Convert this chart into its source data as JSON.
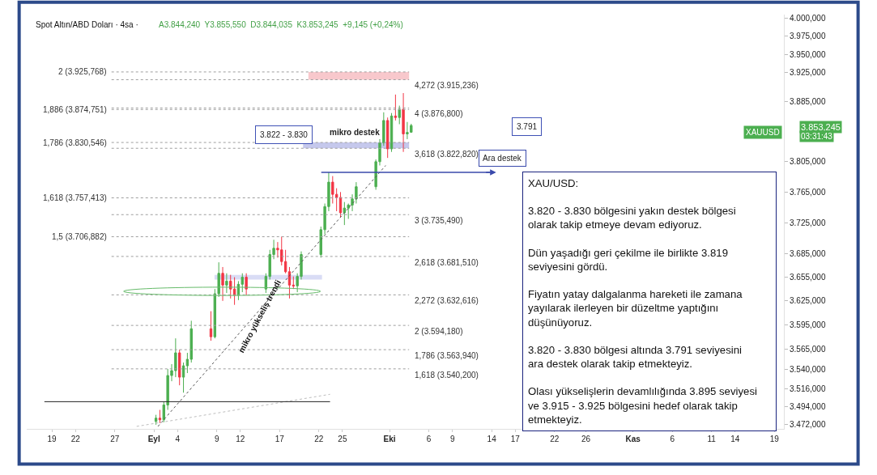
{
  "chart_data": {
    "type": "candlestick",
    "title": "Spot Altın/ABD Doları · 4sa ·",
    "subtitle": "A3.844,240  Y3.855,550  D3.844,035  K3.853,245  +9,145 (+0,24%)",
    "x": [
      "--09-01T06:00",
      "--09-01T18:00",
      "--09-02T06:00",
      "--09-02T18:00",
      "--09-03T06:00",
      "--09-03T18:00",
      "--09-04T06:00",
      "--09-04T18:00",
      "--09-05T06:00",
      "--09-05T18:00",
      "--09-08T06:00",
      "--09-08T18:00",
      "--09-09T06:00",
      "--09-09T18:00",
      "--09-10T06:00",
      "--09-10T18:00",
      "--09-11T06:00",
      "--09-11T18:00",
      "--09-12T06:00",
      "--09-12T18:00",
      "--09-15T06:00",
      "--09-15T18:00",
      "--09-16T06:00",
      "--09-16T18:00",
      "--09-17T06:00",
      "--09-17T18:00",
      "--09-18T06:00",
      "--09-18T18:00",
      "--09-19T06:00",
      "--09-19T18:00",
      "--09-22T06:00",
      "--09-22T18:00",
      "--09-23T06:00",
      "--09-23T18:00",
      "--09-24T06:00",
      "--09-24T18:00",
      "--09-25T06:00",
      "--09-25T18:00",
      "--09-26T06:00",
      "--09-26T18:00",
      "--09-29T06:00",
      "--09-29T18:00",
      "--09-30T06:00",
      "--09-30T18:00",
      "--10-01T06:00",
      "--10-01T18:00",
      "--10-02T06:00",
      "--10-02T18:00",
      "--10-03T06:00",
      "--10-03T18:00"
    ],
    "ohlc": [
      [
        3476,
        3484,
        3472,
        3480
      ],
      [
        3480,
        3490,
        3474,
        3478
      ],
      [
        3478,
        3500,
        3475,
        3496
      ],
      [
        3496,
        3540,
        3490,
        3532
      ],
      [
        3532,
        3546,
        3525,
        3538
      ],
      [
        3538,
        3578,
        3530,
        3560
      ],
      [
        3560,
        3564,
        3520,
        3530
      ],
      [
        3530,
        3548,
        3511,
        3544
      ],
      [
        3544,
        3560,
        3535,
        3552
      ],
      [
        3552,
        3600,
        3548,
        3590
      ],
      [
        3590,
        3612,
        3575,
        3580
      ],
      [
        3580,
        3640,
        3578,
        3634
      ],
      [
        3634,
        3674,
        3630,
        3660
      ],
      [
        3660,
        3668,
        3625,
        3645
      ],
      [
        3645,
        3660,
        3635,
        3650
      ],
      [
        3650,
        3658,
        3628,
        3640
      ],
      [
        3640,
        3655,
        3620,
        3632
      ],
      [
        3632,
        3650,
        3626,
        3646
      ],
      [
        3646,
        3660,
        3636,
        3655
      ],
      [
        3655,
        3660,
        3632,
        3640
      ],
      [
        3640,
        3660,
        3635,
        3656
      ],
      [
        3656,
        3690,
        3652,
        3684
      ],
      [
        3684,
        3703,
        3678,
        3692
      ],
      [
        3692,
        3700,
        3680,
        3690
      ],
      [
        3690,
        3707,
        3670,
        3675
      ],
      [
        3675,
        3690,
        3660,
        3662
      ],
      [
        3662,
        3668,
        3628,
        3645
      ],
      [
        3645,
        3656,
        3640,
        3644
      ],
      [
        3644,
        3660,
        3636,
        3656
      ],
      [
        3656,
        3688,
        3652,
        3684
      ],
      [
        3684,
        3720,
        3680,
        3716
      ],
      [
        3716,
        3750,
        3710,
        3746
      ],
      [
        3746,
        3791,
        3740,
        3778
      ],
      [
        3778,
        3786,
        3750,
        3762
      ],
      [
        3762,
        3770,
        3740,
        3758
      ],
      [
        3758,
        3765,
        3732,
        3738
      ],
      [
        3738,
        3752,
        3722,
        3744
      ],
      [
        3744,
        3750,
        3730,
        3748
      ],
      [
        3748,
        3762,
        3740,
        3756
      ],
      [
        3756,
        3778,
        3750,
        3772
      ],
      [
        3772,
        3808,
        3768,
        3805
      ],
      [
        3805,
        3835,
        3800,
        3830
      ],
      [
        3830,
        3871,
        3826,
        3860
      ],
      [
        3860,
        3864,
        3810,
        3822
      ],
      [
        3822,
        3870,
        3818,
        3866
      ],
      [
        3866,
        3895,
        3860,
        3864
      ],
      [
        3864,
        3880,
        3855,
        3875
      ],
      [
        3875,
        3897,
        3818,
        3842
      ],
      [
        3842,
        3858,
        3835,
        3844
      ],
      [
        3844.24,
        3855.55,
        3844.035,
        3853.245
      ]
    ],
    "colors": [
      "#4caf50",
      "#f23645",
      "#4caf50",
      "#4caf50",
      "#4caf50",
      "#4caf50",
      "#f23645",
      "#4caf50",
      "#4caf50",
      "#4caf50",
      "#f23645",
      "#4caf50",
      "#4caf50",
      "#f23645",
      "#4caf50",
      "#f23645",
      "#f23645",
      "#4caf50",
      "#4caf50",
      "#f23645",
      "#4caf50",
      "#4caf50",
      "#4caf50",
      "#f23645",
      "#f23645",
      "#f23645",
      "#f23645",
      "#f23645",
      "#4caf50",
      "#4caf50",
      "#4caf50",
      "#4caf50",
      "#4caf50",
      "#f23645",
      "#f23645",
      "#f23645",
      "#4caf50",
      "#4caf50",
      "#4caf50",
      "#4caf50",
      "#4caf50",
      "#4caf50",
      "#4caf50",
      "#f23645",
      "#4caf50",
      "#f23645",
      "#4caf50",
      "#f23645",
      "#4caf50",
      "#4caf50"
    ],
    "series": [
      {
        "type": "line",
        "x": [
          "--09-01T12:00",
          "--09-30T12:00"
        ],
        "values": [
          3470,
          3800
        ],
        "color": "#555555",
        "line_style": "dotted"
      },
      {
        "type": "line",
        "x": [
          "--08-29T19:00",
          "--09-23T10:00"
        ],
        "values": [
          3470,
          3509
        ],
        "color": "#bdbdbd",
        "line_style": "dotted"
      },
      {
        "type": "line",
        "x": [
          "--08-18T01:00",
          "--09-23T10:00"
        ],
        "values": [
          3500,
          3500
        ],
        "color": "#212121",
        "line_style": "solid"
      }
    ],
    "log": "y",
    "xlim": [
      "--08-15T19:00",
      "--11-20T05:00"
    ],
    "xticks": [
      {
        "value": "--08-19",
        "label": "19"
      },
      {
        "value": "--08-22",
        "label": "22"
      },
      {
        "value": "--08-27",
        "label": "27"
      },
      {
        "value": "--09-01",
        "label": "Eyl"
      },
      {
        "value": "--09-04",
        "label": "4"
      },
      {
        "value": "--09-09",
        "label": "9"
      },
      {
        "value": "--09-12",
        "label": "12"
      },
      {
        "value": "--09-17",
        "label": "17"
      },
      {
        "value": "--09-22",
        "label": "22"
      },
      {
        "value": "--09-25",
        "label": "25"
      },
      {
        "value": "--10-01",
        "label": "Eki"
      },
      {
        "value": "--10-06",
        "label": "6"
      },
      {
        "value": "--10-09",
        "label": "9"
      },
      {
        "value": "--10-14",
        "label": "14"
      },
      {
        "value": "--10-17",
        "label": "17"
      },
      {
        "value": "--10-22",
        "label": "22"
      },
      {
        "value": "--10-26",
        "label": "26"
      },
      {
        "value": "--11-01",
        "label": "Kas"
      },
      {
        "value": "--11-06",
        "label": "6"
      },
      {
        "value": "--11-11",
        "label": "11"
      },
      {
        "value": "--11-14",
        "label": "14"
      },
      {
        "value": "--11-19",
        "label": "19"
      }
    ],
    "ylim": [
      3467,
      4005
    ],
    "yticks": [
      {
        "value": 3472,
        "label": "3.472,000"
      },
      {
        "value": 3494,
        "label": "3.494,000"
      },
      {
        "value": 3516,
        "label": "3.516,000"
      },
      {
        "value": 3540,
        "label": "3.540,000"
      },
      {
        "value": 3565,
        "label": "3.565,000"
      },
      {
        "value": 3595,
        "label": "3.595,000"
      },
      {
        "value": 3625,
        "label": "3.625,000"
      },
      {
        "value": 3655,
        "label": "3.655,000"
      },
      {
        "value": 3685,
        "label": "3.685,000"
      },
      {
        "value": 3725,
        "label": "3.725,000"
      },
      {
        "value": 3765,
        "label": "3.765,000"
      },
      {
        "value": 3805,
        "label": "3.805,000"
      },
      {
        "value": 3885,
        "label": "3.885,000"
      },
      {
        "value": 3925,
        "label": "3.925,000"
      },
      {
        "value": 3950,
        "label": "3.950,000"
      },
      {
        "value": 3975,
        "label": "3.975,000"
      },
      {
        "value": 4000,
        "label": "4.000,000"
      }
    ],
    "ref_lines": [
      {
        "axis": "y",
        "value": 3925.768,
        "label": "2 (3.925,768)",
        "color": "#9e9e9e",
        "line_style": "dotted"
      },
      {
        "axis": "y",
        "value": 3874.751,
        "label": "1,886 (3.874,751)",
        "color": "#9e9e9e",
        "line_style": "dotted"
      },
      {
        "axis": "y",
        "value": 3830.546,
        "label": "1,786 (3.830,546)",
        "color": "#9e9e9e",
        "line_style": "dotted"
      },
      {
        "axis": "y",
        "value": 3757.413,
        "label": "1,618 (3.757,413)",
        "color": "#9e9e9e",
        "line_style": "dotted"
      },
      {
        "axis": "y",
        "value": 3706.882,
        "label": "1,5 (3.706,882)",
        "color": "#9e9e9e",
        "line_style": "dotted"
      },
      {
        "axis": "y",
        "value": 3915.236,
        "label": "4,272 (3.915,236)",
        "color": "#9e9e9e",
        "line_style": "dotted"
      },
      {
        "axis": "y",
        "value": 3876.8,
        "label": "4 (3.876,800)",
        "color": "#9e9e9e",
        "line_style": "dotted"
      },
      {
        "axis": "y",
        "value": 3822.82,
        "label": "3,618 (3.822,820)",
        "color": "#9e9e9e",
        "line_style": "dotted"
      },
      {
        "axis": "y",
        "value": 3735.49,
        "label": "3 (3.735,490)",
        "color": "#9e9e9e",
        "line_style": "dotted"
      },
      {
        "axis": "y",
        "value": 3681.51,
        "label": "2,618 (3.681,510)",
        "color": "#9e9e9e",
        "line_style": "dotted"
      },
      {
        "axis": "y",
        "value": 3632.616,
        "label": "2,272 (3.632,616)",
        "color": "#9e9e9e",
        "line_style": "dotted"
      },
      {
        "axis": "y",
        "value": 3594.18,
        "label": "2 (3.594,180)",
        "color": "#9e9e9e",
        "line_style": "dotted"
      },
      {
        "axis": "y",
        "value": 3563.94,
        "label": "1,786 (3.563,940)",
        "color": "#9e9e9e",
        "line_style": "dotted"
      },
      {
        "axis": "y",
        "value": 3540.2,
        "label": "1,618 (3.540,200)",
        "color": "#9e9e9e",
        "line_style": "dotted"
      },
      {
        "axis": "y",
        "value": 3791,
        "label": "Ara destek",
        "color": "#3949ab",
        "line_style": "solid"
      }
    ],
    "bands": [
      {
        "axis": "y",
        "from": 3915.236,
        "to": 3925.768,
        "color": "#f8c8cc"
      },
      {
        "axis": "y",
        "from": 3822.82,
        "to": 3830.546,
        "label": "mikro destek",
        "color": "#c5c8ec"
      },
      {
        "axis": "y",
        "from": 3652,
        "to": 3658,
        "color": "#d9dcf5"
      }
    ],
    "annotations": [
      "XAU/USD:\n\n3.820 - 3.830 bölgesini yakın destek bölgesi\nolarak takip etmeye devam ediyoruz.\n\nDün yaşadığı geri çekilme ile birlikte 3.819\nseviyesini gördü.\n\nFiyatın yatay dalgalanma hareketi ile zamana\nyayılarak ilerleyen bir düzeltme yaptığını\ndüşünüyoruz.\n\n3.820 - 3.830 bölgesi altında 3.791 seviyesini\nara destek olarak takip etmekteyiz.\n\nOlası yükselişlerin devamlılığında 3.895 seviyesi\nve 3.915 - 3.925 bölgesini hedef olarak takip\netmekteyiz.",
      "3.822 - 3.830",
      "3.791",
      "mikro yükseliş trendi",
      "XAUUSD",
      "3.853,245",
      "03:31:43"
    ],
    "grid": false
  }
}
